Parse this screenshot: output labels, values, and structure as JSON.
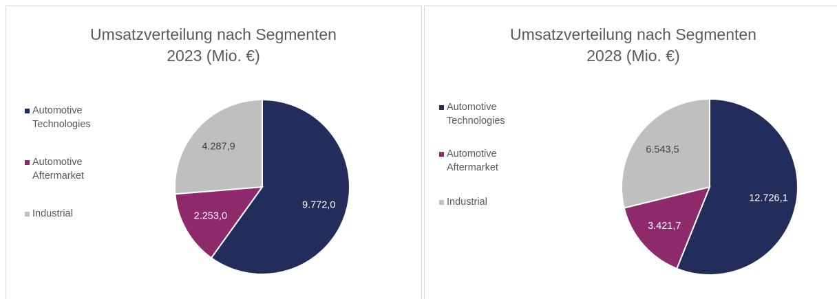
{
  "chart_data": [
    {
      "type": "pie",
      "title": "Umsatzverteilung nach Segmenten 2023 (Mio. €)",
      "categories": [
        "Automotive Technologies",
        "Automotive Aftermarket",
        "Industrial"
      ],
      "values": [
        9772.0,
        2253.0,
        4287.9
      ],
      "value_labels": [
        "9.772,0",
        "2.253,0",
        "4.287,9"
      ],
      "colors": [
        "#232d5c",
        "#8e2a6b",
        "#bfbfbf"
      ],
      "legend": "left"
    },
    {
      "type": "pie",
      "title": "Umsatzverteilung nach Segmenten 2028 (Mio. €)",
      "categories": [
        "Automotive Technologies",
        "Automotive Aftermarket",
        "Industrial"
      ],
      "values": [
        12726.1,
        3421.7,
        6543.5
      ],
      "value_labels": [
        "12.726,1",
        "3.421,7",
        "6.543,5"
      ],
      "colors": [
        "#232d5c",
        "#8e2a6b",
        "#bfbfbf"
      ],
      "legend": "left"
    }
  ]
}
